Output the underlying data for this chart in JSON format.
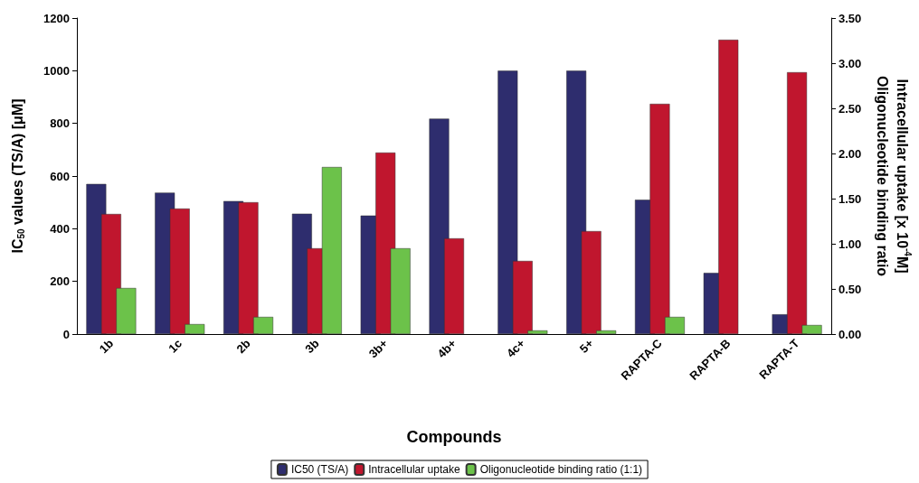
{
  "chart_data": {
    "type": "bar",
    "categories": [
      "1b",
      "1c",
      "2b",
      "3b",
      "3b+",
      "4b+",
      "4c+",
      "5+",
      "RAPTA-C",
      "RAPTA-B",
      "RAPTA-T"
    ],
    "xlabel": "Compounds",
    "ylabel": "IC$_{50}$ values (TS/A) [μM]",
    "y2label": "Intracellular uptake [x 10$^{-4}$M]\nOligonucleotide binding ratio",
    "ylim": [
      0,
      1200
    ],
    "yticks": [
      0,
      200,
      400,
      600,
      800,
      1000,
      1200
    ],
    "y2lim": [
      0,
      3.5
    ],
    "y2ticks": [
      {
        "value": 0,
        "label": "0.00"
      },
      {
        "value": 0.5,
        "label": "0.50"
      },
      {
        "value": 1,
        "label": "1.00"
      },
      {
        "value": 1.5,
        "label": "1.50"
      },
      {
        "value": 2,
        "label": "2.00"
      },
      {
        "value": 2.5,
        "label": "2.50"
      },
      {
        "value": 3,
        "label": "3.00"
      },
      {
        "value": 3.5,
        "label": "3.50"
      }
    ],
    "series": [
      {
        "name": "IC50 (TS/A)",
        "color": "#2e2d6e",
        "values": [
          570,
          537,
          505,
          457,
          450,
          818,
          1000,
          1000,
          510,
          232,
          75
        ]
      },
      {
        "name": "Intracellular uptake",
        "color": "#c0162e",
        "axis": "y2",
        "values": [
          1.33,
          1.39,
          1.46,
          0.95,
          2.01,
          1.06,
          0.81,
          1.14,
          2.55,
          3.26,
          2.9
        ]
      },
      {
        "name": "Oligonucleotide binding ratio (1:1)",
        "color": "#6cc24a",
        "axis": "y2",
        "values": [
          0.51,
          0.11,
          0.19,
          1.85,
          0.95,
          null,
          0.04,
          0.04,
          0.19,
          null,
          0.1
        ]
      }
    ],
    "legend": "bottom",
    "grid": false
  }
}
